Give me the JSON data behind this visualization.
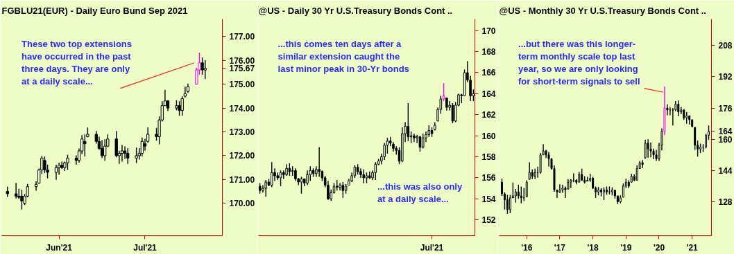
{
  "chart_data": [
    {
      "type": "candlestick",
      "title": "FGBLU21(EUR) - Daily  Euro Bund Sep 2021",
      "x": [
        "2021-05-14",
        "2021-05-17",
        "2021-05-18",
        "2021-05-19",
        "2021-05-20",
        "2021-05-21",
        "2021-05-24",
        "2021-05-25",
        "2021-05-26",
        "2021-05-27",
        "2021-05-28",
        "2021-05-31",
        "2021-06-01",
        "2021-06-02",
        "2021-06-03",
        "2021-06-04",
        "2021-06-07",
        "2021-06-08",
        "2021-06-09",
        "2021-06-10",
        "2021-06-11",
        "2021-06-14",
        "2021-06-15",
        "2021-06-16",
        "2021-06-17",
        "2021-06-18",
        "2021-06-21",
        "2021-06-22",
        "2021-06-23",
        "2021-06-24",
        "2021-06-25",
        "2021-06-28",
        "2021-06-29",
        "2021-06-30",
        "2021-07-01",
        "2021-07-02",
        "2021-07-05",
        "2021-07-06",
        "2021-07-07",
        "2021-07-08",
        "2021-07-09",
        "2021-07-12",
        "2021-07-13",
        "2021-07-14",
        "2021-07-15",
        "2021-07-16",
        "2021-07-19",
        "2021-07-20",
        "2021-07-21",
        "2021-07-22"
      ],
      "xlim": [
        "2021-05-12",
        "2021-07-28"
      ],
      "xticks": [
        {
          "value": "2021-06-01",
          "label": "Jun'21"
        },
        {
          "value": "2021-07-01",
          "label": "Jul'21"
        }
      ],
      "ohlc": [
        [
          170.5,
          170.7,
          170.27,
          170.4
        ],
        [
          170.4,
          170.86,
          170.2,
          170.3
        ],
        [
          170.3,
          170.61,
          170.18,
          170.25
        ],
        [
          170.3,
          170.57,
          169.74,
          170.1
        ],
        [
          170.0,
          170.39,
          169.93,
          170.3
        ],
        [
          170.3,
          170.81,
          170.25,
          170.7
        ],
        [
          170.7,
          170.92,
          170.53,
          170.8
        ],
        [
          170.85,
          171.46,
          170.81,
          171.4
        ],
        [
          171.4,
          171.99,
          171.23,
          171.9
        ],
        [
          171.8,
          171.97,
          171.27,
          171.4
        ],
        [
          171.4,
          171.62,
          171.05,
          171.3
        ],
        [
          171.3,
          171.62,
          170.99,
          171.5
        ],
        [
          171.5,
          171.71,
          171.2,
          171.6
        ],
        [
          171.6,
          171.75,
          171.44,
          171.5
        ],
        [
          171.5,
          171.75,
          171.36,
          171.7
        ],
        [
          171.7,
          172.04,
          171.4,
          171.9
        ],
        [
          171.9,
          172.01,
          171.62,
          171.8
        ],
        [
          171.8,
          172.3,
          171.71,
          172.2
        ],
        [
          172.2,
          172.86,
          172.06,
          172.7
        ],
        [
          172.6,
          172.89,
          171.97,
          172.5
        ],
        [
          172.8,
          173.18,
          172.77,
          172.9
        ],
        [
          172.9,
          173.04,
          172.51,
          172.6
        ],
        [
          172.6,
          172.8,
          172.25,
          172.3
        ],
        [
          172.3,
          172.65,
          171.9,
          172.0
        ],
        [
          172.0,
          172.69,
          171.79,
          172.4
        ],
        [
          172.4,
          172.89,
          172.36,
          172.7
        ],
        [
          172.7,
          173.04,
          171.93,
          172.0
        ],
        [
          172.0,
          172.21,
          171.66,
          172.1
        ],
        [
          172.1,
          172.45,
          171.75,
          172.2
        ],
        [
          172.2,
          172.39,
          171.86,
          172.1
        ],
        [
          172.1,
          172.32,
          171.66,
          171.9
        ],
        [
          171.9,
          172.34,
          171.69,
          172.0
        ],
        [
          172.0,
          172.32,
          171.84,
          172.1
        ],
        [
          172.1,
          172.76,
          171.97,
          172.6
        ],
        [
          172.5,
          172.71,
          172.21,
          172.4
        ],
        [
          172.6,
          173.19,
          172.54,
          172.9
        ],
        [
          172.9,
          173.17,
          172.63,
          172.8
        ],
        [
          172.8,
          173.65,
          172.48,
          173.5
        ],
        [
          173.5,
          174.29,
          173.44,
          174.1
        ],
        [
          174.1,
          174.77,
          174.09,
          174.3
        ],
        [
          174.3,
          174.33,
          173.88,
          174.0
        ],
        [
          174.0,
          174.33,
          173.91,
          174.1
        ],
        [
          174.1,
          174.29,
          173.68,
          173.9
        ],
        [
          173.9,
          174.49,
          173.68,
          174.4
        ],
        [
          174.5,
          174.9,
          174.44,
          174.6
        ],
        [
          174.7,
          175.03,
          174.64,
          174.9
        ],
        [
          175.0,
          175.69,
          174.99,
          175.6
        ],
        [
          175.6,
          176.33,
          175.4,
          175.9
        ],
        [
          175.9,
          176.13,
          175.4,
          175.6
        ],
        [
          175.6,
          176.01,
          175.22,
          175.67
        ]
      ],
      "colors": [
        "#000000",
        "#000000",
        "#000000",
        "#000000",
        "#000000",
        "#000000",
        "#000000",
        "#000000",
        "#000000",
        "#000000",
        "#000000",
        "#000000",
        "#000000",
        "#000000",
        "#000000",
        "#000000",
        "#000000",
        "#000000",
        "#000000",
        "#000000",
        "#000000",
        "#000000",
        "#000000",
        "#000000",
        "#000000",
        "#000000",
        "#000000",
        "#000000",
        "#000000",
        "#000000",
        "#000000",
        "#000000",
        "#000000",
        "#000000",
        "#000000",
        "#000000",
        "#000000",
        "#000000",
        "#000000",
        "#000000",
        "#000000",
        "#000000",
        "#000000",
        "#000000",
        "#000000",
        "#000000",
        "#ff00ff",
        "#ff00ff",
        "#000000",
        "#000000"
      ],
      "ylim": [
        168.64,
        177.74
      ],
      "yticks": [
        {
          "value": 170,
          "label": "170.00"
        },
        {
          "value": 171,
          "label": "171.00"
        },
        {
          "value": 172,
          "label": "172.00"
        },
        {
          "value": 173,
          "label": "173.00"
        },
        {
          "value": 174,
          "label": "174.00"
        },
        {
          "value": 175,
          "label": "175.00"
        },
        {
          "value": 175.67,
          "label": "175.67"
        },
        {
          "value": 176,
          "label": "176.00"
        },
        {
          "value": 177,
          "label": "177.00"
        }
      ],
      "annotations": [
        {
          "text": "These two top extensions\nhave occurred in the past\nthree days. They are only\nat a daily scale...",
          "x": "2021-07-19",
          "y": 175.9
        }
      ]
    },
    {
      "type": "candlestick",
      "title": "@US - Daily  30 Yr U.S.Treasury Bonds Cont ..",
      "categories": [
        null,
        null,
        null,
        null,
        null,
        null,
        null,
        null,
        null,
        null,
        null,
        null,
        null,
        null,
        null,
        null,
        null,
        null,
        null,
        null,
        null,
        null,
        null,
        null,
        null,
        null,
        null,
        null,
        null,
        null,
        null,
        null,
        null,
        null,
        null,
        null,
        null,
        null,
        null,
        null,
        null,
        null,
        null,
        null,
        null,
        null,
        null,
        null,
        null,
        null,
        null,
        null,
        null,
        null,
        null,
        null,
        null,
        null,
        "Jul'21",
        null,
        null,
        null,
        null,
        null,
        null,
        null,
        null,
        null,
        null,
        null,
        null,
        null,
        null
      ],
      "ohlc": [
        [
          155.2,
          155.5,
          154.5,
          154.8
        ],
        [
          154.8,
          155.3,
          154.6,
          155.0
        ],
        [
          155.0,
          155.8,
          154.2,
          155.6
        ],
        [
          155.6,
          155.9,
          155.2,
          155.3
        ],
        [
          155.3,
          157.5,
          155.1,
          156.5
        ],
        [
          156.5,
          156.9,
          155.7,
          156.2
        ],
        [
          156.2,
          156.5,
          155.8,
          156.0
        ],
        [
          156.0,
          156.7,
          155.2,
          156.5
        ],
        [
          156.5,
          156.7,
          155.9,
          156.3
        ],
        [
          156.3,
          157.3,
          156.2,
          156.9
        ],
        [
          156.9,
          157.4,
          156.2,
          156.6
        ],
        [
          156.6,
          157.1,
          156.2,
          156.7
        ],
        [
          156.7,
          156.9,
          155.7,
          155.9
        ],
        [
          155.9,
          156.0,
          155.3,
          155.6
        ],
        [
          155.6,
          156.1,
          154.5,
          155.9
        ],
        [
          155.9,
          155.9,
          155.2,
          155.5
        ],
        [
          155.5,
          156.7,
          155.3,
          156.3
        ],
        [
          156.3,
          157.1,
          155.7,
          156.7
        ],
        [
          156.7,
          156.9,
          156.1,
          156.4
        ],
        [
          156.4,
          157.1,
          156.1,
          156.8
        ],
        [
          156.8,
          158.9,
          156.1,
          156.6
        ],
        [
          156.6,
          156.7,
          155.7,
          156.0
        ],
        [
          156.0,
          156.2,
          155.1,
          155.3
        ],
        [
          155.3,
          155.7,
          153.9,
          154.0
        ],
        [
          154.0,
          154.9,
          153.8,
          154.6
        ],
        [
          154.6,
          155.5,
          154.5,
          155.2
        ],
        [
          155.2,
          155.8,
          154.8,
          155.1
        ],
        [
          155.1,
          155.5,
          154.8,
          155.3
        ],
        [
          155.3,
          155.6,
          154.1,
          154.8
        ],
        [
          154.8,
          155.4,
          154.5,
          155.2
        ],
        [
          155.3,
          155.9,
          155.3,
          155.7
        ],
        [
          155.7,
          156.5,
          155.6,
          156.2
        ],
        [
          156.2,
          157.2,
          156.0,
          157.0
        ],
        [
          157.0,
          157.3,
          156.3,
          156.6
        ],
        [
          156.6,
          156.9,
          156.0,
          156.3
        ],
        [
          156.3,
          156.8,
          155.5,
          156.0
        ],
        [
          156.0,
          156.5,
          155.5,
          156.2
        ],
        [
          156.2,
          156.6,
          155.9,
          156.0
        ],
        [
          156.0,
          156.7,
          155.8,
          156.5
        ],
        [
          156.5,
          157.5,
          155.8,
          157.3
        ],
        [
          157.3,
          157.8,
          157.2,
          157.6
        ],
        [
          157.6,
          158.3,
          157.3,
          158.0
        ],
        [
          158.0,
          159.3,
          157.7,
          159.1
        ],
        [
          159.1,
          159.8,
          158.3,
          159.5
        ],
        [
          159.5,
          159.9,
          159.0,
          159.3
        ],
        [
          159.2,
          159.4,
          158.5,
          158.8
        ],
        [
          158.8,
          159.0,
          158.2,
          158.6
        ],
        [
          158.6,
          158.9,
          157.3,
          157.6
        ],
        [
          157.6,
          160.8,
          157.5,
          160.2
        ],
        [
          160.2,
          161.3,
          159.4,
          160.9
        ],
        [
          160.9,
          163.1,
          159.5,
          159.9
        ],
        [
          159.9,
          160.4,
          159.3,
          160.0
        ],
        [
          160.0,
          160.2,
          159.4,
          159.8
        ],
        [
          159.8,
          160.1,
          159.3,
          159.9
        ],
        [
          159.9,
          160.0,
          158.5,
          158.9
        ],
        [
          158.9,
          160.2,
          158.8,
          159.8
        ],
        [
          159.8,
          160.4,
          159.4,
          160.1
        ],
        [
          160.1,
          161.0,
          159.9,
          160.5
        ],
        [
          160.5,
          160.8,
          159.9,
          160.2
        ],
        [
          160.6,
          161.3,
          160.5,
          161.0
        ],
        [
          161.4,
          162.7,
          161.4,
          162.5
        ],
        [
          162.5,
          163.8,
          162.1,
          163.5
        ],
        [
          163.5,
          165.0,
          163.3,
          163.8
        ],
        [
          163.6,
          163.6,
          162.4,
          162.7
        ],
        [
          162.7,
          163.3,
          162.4,
          162.9
        ],
        [
          162.9,
          163.1,
          161.2,
          161.4
        ],
        [
          161.4,
          163.2,
          161.3,
          162.9
        ],
        [
          162.9,
          164.0,
          162.8,
          163.9
        ],
        [
          163.9,
          164.0,
          163.1,
          163.8
        ],
        [
          163.8,
          166.3,
          163.8,
          166.0
        ],
        [
          166.0,
          167.1,
          165.1,
          165.3
        ],
        [
          165.3,
          165.7,
          163.3,
          163.8
        ],
        [
          163.8,
          164.4,
          163.3,
          164.0
        ]
      ],
      "colors": [
        "#000000",
        "#000000",
        "#000000",
        "#000000",
        "#000000",
        "#000000",
        "#000000",
        "#000000",
        "#000000",
        "#000000",
        "#000000",
        "#000000",
        "#000000",
        "#000000",
        "#000000",
        "#000000",
        "#000000",
        "#000000",
        "#000000",
        "#000000",
        "#000000",
        "#000000",
        "#000000",
        "#000000",
        "#000000",
        "#000000",
        "#000000",
        "#000000",
        "#000000",
        "#000000",
        "#000000",
        "#000000",
        "#000000",
        "#000000",
        "#000000",
        "#000000",
        "#000000",
        "#000000",
        "#000000",
        "#000000",
        "#000000",
        "#000000",
        "#000000",
        "#000000",
        "#000000",
        "#000000",
        "#000000",
        "#000000",
        "#000000",
        "#000000",
        "#000000",
        "#000000",
        "#000000",
        "#000000",
        "#000000",
        "#000000",
        "#000000",
        "#000000",
        "#000000",
        "#000000",
        "#000000",
        "#000000",
        "#ff00ff",
        "#000000",
        "#000000",
        "#000000",
        "#000000",
        "#000000",
        "#000000",
        "#000000",
        "#000000",
        "#000000",
        "#000000"
      ],
      "ylim": [
        150.5,
        171.1
      ],
      "yticks": [
        152,
        154,
        156,
        158,
        160,
        162,
        164,
        166,
        168,
        170
      ],
      "annotations": [
        "...this comes ten days after a\nsimilar extension caught the\nlast minor peak in 30-Yr bonds",
        "...this was also only\nat a daily scale..."
      ]
    },
    {
      "type": "candlestick",
      "title": "@US - Monthly  30 Yr U.S.Treasury Bonds Cont ..",
      "x": [
        "2015-04",
        "2015-05",
        "2015-06",
        "2015-07",
        "2015-08",
        "2015-09",
        "2015-10",
        "2015-11",
        "2015-12",
        "2016-01",
        "2016-02",
        "2016-03",
        "2016-04",
        "2016-05",
        "2016-06",
        "2016-07",
        "2016-08",
        "2016-09",
        "2016-10",
        "2016-11",
        "2016-12",
        "2017-01",
        "2017-02",
        "2017-03",
        "2017-04",
        "2017-05",
        "2017-06",
        "2017-07",
        "2017-08",
        "2017-09",
        "2017-10",
        "2017-11",
        "2017-12",
        "2018-01",
        "2018-02",
        "2018-03",
        "2018-04",
        "2018-05",
        "2018-06",
        "2018-07",
        "2018-08",
        "2018-09",
        "2018-10",
        "2018-11",
        "2018-12",
        "2019-01",
        "2019-02",
        "2019-03",
        "2019-04",
        "2019-05",
        "2019-06",
        "2019-07",
        "2019-08",
        "2019-09",
        "2019-10",
        "2019-11",
        "2019-12",
        "2020-01",
        "2020-02",
        "2020-03",
        "2020-04",
        "2020-05",
        "2020-06",
        "2020-07",
        "2020-08",
        "2020-09",
        "2020-10",
        "2020-11",
        "2020-12",
        "2021-01",
        "2021-02",
        "2021-03",
        "2021-04",
        "2021-05",
        "2021-06",
        "2021-07"
      ],
      "ohlc": [
        [
          138,
          139.9,
          131.0,
          132
        ],
        [
          132,
          132.8,
          124.0,
          129
        ],
        [
          129,
          131.5,
          121.9,
          124
        ],
        [
          124,
          131.5,
          122.1,
          130
        ],
        [
          130,
          137.8,
          129.9,
          131
        ],
        [
          131,
          134.5,
          127.5,
          133
        ],
        [
          133,
          136.7,
          129.4,
          131
        ],
        [
          131,
          135.8,
          127.2,
          130
        ],
        [
          130,
          135.0,
          128.3,
          130
        ],
        [
          130.5,
          139.0,
          130.3,
          138
        ],
        [
          139.5,
          148.2,
          139.3,
          143
        ],
        [
          143,
          144.6,
          139.6,
          141
        ],
        [
          141,
          144.9,
          139.6,
          143
        ],
        [
          143,
          146.0,
          140.3,
          143
        ],
        [
          143,
          153.0,
          142.3,
          152
        ],
        [
          152,
          157.5,
          151.9,
          154
        ],
        [
          154,
          154.6,
          150.3,
          152
        ],
        [
          152,
          153.5,
          146.0,
          150
        ],
        [
          150,
          150.3,
          144.4,
          145
        ],
        [
          145,
          146.6,
          133.1,
          134
        ],
        [
          134,
          134.2,
          129.9,
          133
        ],
        [
          133,
          136.9,
          132.4,
          134
        ],
        [
          134,
          136.7,
          132.6,
          135
        ],
        [
          135,
          135.8,
          129.9,
          134
        ],
        [
          134.5,
          139.6,
          134.2,
          138
        ],
        [
          138,
          139.6,
          135.0,
          139
        ],
        [
          139,
          142.5,
          138.0,
          139
        ],
        [
          139,
          139.6,
          136.9,
          138
        ],
        [
          138,
          143.3,
          138.0,
          142
        ],
        [
          142,
          144.9,
          138.8,
          139
        ],
        [
          139,
          141.0,
          137.4,
          138
        ],
        [
          138.5,
          140.7,
          138.5,
          139
        ],
        [
          139,
          142.3,
          138.2,
          140
        ],
        [
          140,
          140.7,
          134.5,
          135
        ],
        [
          135,
          135.8,
          129.9,
          133
        ],
        [
          133,
          135.6,
          131.3,
          134
        ],
        [
          134,
          135.0,
          130.7,
          133
        ],
        [
          133,
          135.3,
          128.9,
          134
        ],
        [
          134,
          135.8,
          131.5,
          133
        ],
        [
          133,
          135.8,
          131.8,
          133
        ],
        [
          133,
          135.3,
          131.3,
          134
        ],
        [
          133.9,
          133.9,
          129.6,
          131
        ],
        [
          131,
          131.0,
          126.7,
          128
        ],
        [
          128,
          131.3,
          127.2,
          130
        ],
        [
          130.3,
          137.4,
          130.3,
          136
        ],
        [
          136,
          139.9,
          135.0,
          138
        ],
        [
          138,
          139.0,
          135.0,
          136
        ],
        [
          138,
          142.3,
          137.8,
          141
        ],
        [
          141,
          142.0,
          138.5,
          139
        ],
        [
          139,
          146.6,
          139.0,
          145
        ],
        [
          145,
          148.9,
          144.9,
          148
        ],
        [
          148,
          149.3,
          145.3,
          147
        ],
        [
          150.5,
          159.7,
          150.0,
          158
        ],
        [
          158,
          160.0,
          150.6,
          155
        ],
        [
          155,
          158.4,
          150.8,
          154
        ],
        [
          154,
          155.2,
          149.8,
          152
        ],
        [
          152,
          154.6,
          148.9,
          150
        ],
        [
          150,
          158.2,
          148.9,
          157
        ],
        [
          157,
          165.6,
          154.3,
          164
        ],
        [
          164,
          187.1,
          162.1,
          176
        ],
        [
          176,
          177.9,
          172.3,
          175
        ],
        [
          175,
          176.6,
          172.3,
          175
        ],
        [
          175,
          176.0,
          167.1,
          175
        ],
        [
          175,
          179.6,
          174.4,
          178
        ],
        [
          178,
          179.8,
          171.8,
          174
        ],
        [
          174,
          176.6,
          172.8,
          175
        ],
        [
          175,
          175.5,
          169.9,
          171
        ],
        [
          171,
          173.9,
          168.0,
          172
        ],
        [
          172,
          172.1,
          167.5,
          170
        ],
        [
          170,
          170.1,
          166.1,
          166.5
        ],
        [
          166.1,
          166.1,
          154.6,
          157
        ],
        [
          157,
          159.4,
          151.1,
          155
        ],
        [
          155,
          157.8,
          153.0,
          156
        ],
        [
          156,
          157.5,
          153.5,
          156
        ],
        [
          156,
          162.8,
          155.3,
          162
        ],
        [
          162,
          167.1,
          159.6,
          164
        ]
      ],
      "colors": [
        "#000000",
        "#000000",
        "#000000",
        "#000000",
        "#000000",
        "#000000",
        "#000000",
        "#000000",
        "#000000",
        "#000000",
        "#000000",
        "#000000",
        "#000000",
        "#000000",
        "#000000",
        "#000000",
        "#000000",
        "#000000",
        "#000000",
        "#000000",
        "#000000",
        "#000000",
        "#000000",
        "#000000",
        "#000000",
        "#000000",
        "#000000",
        "#000000",
        "#000000",
        "#000000",
        "#000000",
        "#000000",
        "#000000",
        "#000000",
        "#000000",
        "#000000",
        "#000000",
        "#000000",
        "#000000",
        "#000000",
        "#000000",
        "#000000",
        "#000000",
        "#000000",
        "#000000",
        "#000000",
        "#000000",
        "#000000",
        "#000000",
        "#000000",
        "#000000",
        "#000000",
        "#000000",
        "#000000",
        "#000000",
        "#000000",
        "#000000",
        "#000000",
        "#000000",
        "#ff00ff",
        "#000000",
        "#000000",
        "#000000",
        "#000000",
        "#000000",
        "#000000",
        "#000000",
        "#000000",
        "#000000",
        "#000000",
        "#000000",
        "#000000",
        "#000000",
        "#000000",
        "#000000",
        "#000000"
      ],
      "xlim": [
        "2015-03",
        "2021-08"
      ],
      "xticks": [
        {
          "value": "2016-01",
          "label": "'16"
        },
        {
          "value": "2017-01",
          "label": "'17"
        },
        {
          "value": "2018-01",
          "label": "'18"
        },
        {
          "value": "2019-01",
          "label": "'19"
        },
        {
          "value": "2020-01",
          "label": "'20"
        },
        {
          "value": "2021-01",
          "label": "'21"
        }
      ],
      "ylim": [
        110.6,
        221.6
      ],
      "yticks": [
        128,
        144,
        160,
        164,
        176,
        192,
        208
      ],
      "annotations": [
        {
          "text": "...but there was this longer-\nterm monthly scale top last\nyear, so we are only looking\nfor short-term signals to sell",
          "x": "2020-03",
          "y": 184.1
        }
      ]
    }
  ]
}
